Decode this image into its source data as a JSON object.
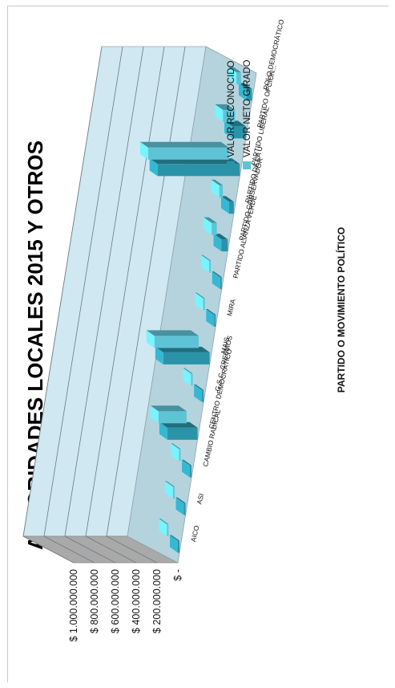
{
  "chart_data": {
    "type": "bar",
    "title": "AUTORIDADES LOCALES 2015 Y OTROS",
    "xlabel": "PARTIDO O MOVIMIENTO POLÍTICO",
    "ylabel": "",
    "ylim": [
      0,
      1000000000
    ],
    "y_ticks": [
      "$ -",
      "$ 200.000.000",
      "$ 400.000.000",
      "$ 600.000.000",
      "$ 800.000.000",
      "$ 1.000.000.000"
    ],
    "categories": [
      "AICO",
      "ASI",
      "CAMBIO RADICAL",
      "CENTRO DEMOCRÁTICO",
      "G.S.C. CREEMOS",
      "MAIS",
      "MIRA",
      "PARTIDO ALIANZA VERDE",
      "PARTIDO CONSERVADOR",
      "PARTIDO DE LA U",
      "PARTIDO LIBERAL",
      "PARTIDO OPCIÓN...",
      "POLO DEMOCRÁTICO"
    ],
    "series": [
      {
        "name": "VALOR RECONOCIDO",
        "color": "#2b93a8",
        "values": [
          3000000,
          3000000,
          3000000,
          290000000,
          3000000,
          445000000,
          3000000,
          3000000,
          60000000,
          45000000,
          790000000,
          130000000,
          50000000
        ]
      },
      {
        "name": "VALOR NETO GIRADO",
        "color": "#5fc3d6",
        "values": [
          3000000,
          3000000,
          3000000,
          270000000,
          3000000,
          425000000,
          3000000,
          3000000,
          50000000,
          35000000,
          775000000,
          115000000,
          45000000
        ]
      }
    ],
    "grid": true,
    "legend_position": "top-right",
    "orientation": "rotated 90 degrees counter-clockwise"
  }
}
